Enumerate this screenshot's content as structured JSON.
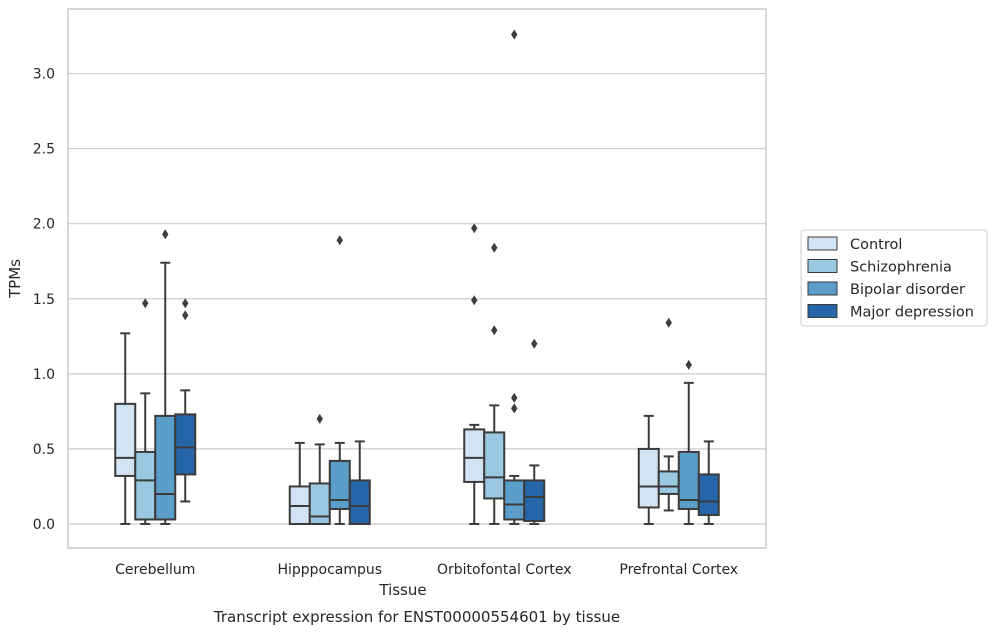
{
  "chart_data": {
    "type": "box",
    "title": "",
    "caption": "Transcript expression for ENST00000554601 by tissue",
    "xlabel": "Tissue",
    "ylabel": "TPMs",
    "ylim": [
      -0.16,
      3.43
    ],
    "yticks": [
      "0.0",
      "0.5",
      "1.0",
      "1.5",
      "2.0",
      "2.5",
      "3.0"
    ],
    "grid": "horizontal",
    "legend_position": "right",
    "categories": [
      "Cerebellum",
      "Hipppocampus",
      "Orbitofontal Cortex",
      "Prefrontal Cortex"
    ],
    "series": [
      {
        "name": "Control",
        "color": "#d2e3f3",
        "boxes": [
          {
            "whislo": 0.0,
            "q1": 0.32,
            "med": 0.44,
            "q3": 0.8,
            "whishi": 1.27,
            "fliers": []
          },
          {
            "whislo": 0.0,
            "q1": 0.0,
            "med": 0.12,
            "q3": 0.25,
            "whishi": 0.54,
            "fliers": []
          },
          {
            "whislo": 0.0,
            "q1": 0.28,
            "med": 0.44,
            "q3": 0.63,
            "whishi": 0.66,
            "fliers": [
              1.49,
              1.97
            ]
          },
          {
            "whislo": 0.0,
            "q1": 0.11,
            "med": 0.25,
            "q3": 0.5,
            "whishi": 0.72,
            "fliers": []
          }
        ]
      },
      {
        "name": "Schizophrenia",
        "color": "#9ac8e0",
        "boxes": [
          {
            "whislo": 0.0,
            "q1": 0.03,
            "med": 0.29,
            "q3": 0.48,
            "whishi": 0.87,
            "fliers": [
              1.47
            ]
          },
          {
            "whislo": 0.0,
            "q1": 0.0,
            "med": 0.05,
            "q3": 0.27,
            "whishi": 0.53,
            "fliers": [
              0.7
            ]
          },
          {
            "whislo": 0.0,
            "q1": 0.17,
            "med": 0.31,
            "q3": 0.61,
            "whishi": 0.79,
            "fliers": [
              1.29,
              1.84
            ]
          },
          {
            "whislo": 0.09,
            "q1": 0.2,
            "med": 0.25,
            "q3": 0.35,
            "whishi": 0.45,
            "fliers": [
              1.34
            ]
          }
        ]
      },
      {
        "name": "Bipolar disorder",
        "color": "#5a9ec9",
        "boxes": [
          {
            "whislo": 0.0,
            "q1": 0.03,
            "med": 0.2,
            "q3": 0.72,
            "whishi": 1.74,
            "fliers": [
              1.93
            ]
          },
          {
            "whislo": 0.0,
            "q1": 0.1,
            "med": 0.16,
            "q3": 0.42,
            "whishi": 0.54,
            "fliers": [
              1.89
            ]
          },
          {
            "whislo": 0.0,
            "q1": 0.03,
            "med": 0.13,
            "q3": 0.29,
            "whishi": 0.32,
            "fliers": [
              0.77,
              0.84
            ]
          },
          {
            "whislo": 0.0,
            "q1": 0.1,
            "med": 0.16,
            "q3": 0.48,
            "whishi": 0.94,
            "fliers": [
              1.06
            ]
          }
        ]
      },
      {
        "name": "Major depression",
        "color": "#2565a8",
        "boxes": [
          {
            "whislo": 0.15,
            "q1": 0.33,
            "med": 0.51,
            "q3": 0.73,
            "whishi": 0.89,
            "fliers": [
              1.39,
              1.47
            ]
          },
          {
            "whislo": 0.0,
            "q1": 0.0,
            "med": 0.12,
            "q3": 0.29,
            "whishi": 0.55,
            "fliers": []
          },
          {
            "whislo": 0.0,
            "q1": 0.02,
            "med": 0.18,
            "q3": 0.29,
            "whishi": 0.39,
            "fliers": [
              1.2
            ]
          },
          {
            "whislo": 0.0,
            "q1": 0.06,
            "med": 0.15,
            "q3": 0.33,
            "whishi": 0.55,
            "fliers": []
          }
        ]
      },
      {
        "name": "",
        "color": "#5a9ec9",
        "boxes": [
          {
            "fliers": []
          },
          {
            "fliers": []
          },
          {
            "fliers": [
              3.26
            ]
          },
          {
            "fliers": []
          }
        ]
      }
    ],
    "colors": {
      "box_edge": "#3b3b3b",
      "grid": "#cccccc",
      "frame": "#cccccc",
      "background": "#ffffff",
      "legend_border": "#cccccc"
    }
  }
}
